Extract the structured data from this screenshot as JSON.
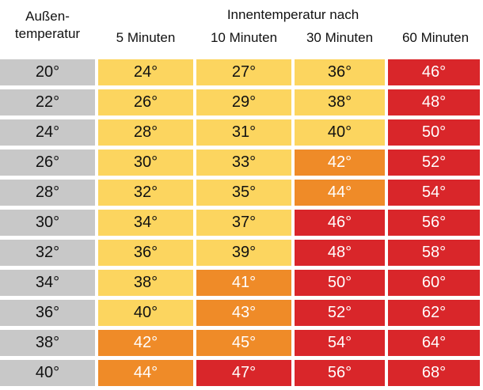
{
  "header": {
    "outside_line1": "Außen-",
    "outside_line2": "temperatur",
    "group": "Innentemperatur nach",
    "columns": [
      "5 Minuten",
      "10 Minuten",
      "30 Minuten",
      "60 Minuten"
    ]
  },
  "colors": {
    "gray": "#c8c8c8",
    "yellow": "#fcd55f",
    "orange": "#ef8b28",
    "red": "#d9262a"
  },
  "rows": [
    {
      "cells": [
        {
          "v": "20°",
          "c": "gray"
        },
        {
          "v": "24°",
          "c": "yellow"
        },
        {
          "v": "27°",
          "c": "yellow"
        },
        {
          "v": "36°",
          "c": "yellow"
        },
        {
          "v": "46°",
          "c": "red"
        }
      ]
    },
    {
      "cells": [
        {
          "v": "22°",
          "c": "gray"
        },
        {
          "v": "26°",
          "c": "yellow"
        },
        {
          "v": "29°",
          "c": "yellow"
        },
        {
          "v": "38°",
          "c": "yellow"
        },
        {
          "v": "48°",
          "c": "red"
        }
      ]
    },
    {
      "cells": [
        {
          "v": "24°",
          "c": "gray"
        },
        {
          "v": "28°",
          "c": "yellow"
        },
        {
          "v": "31°",
          "c": "yellow"
        },
        {
          "v": "40°",
          "c": "yellow"
        },
        {
          "v": "50°",
          "c": "red"
        }
      ]
    },
    {
      "cells": [
        {
          "v": "26°",
          "c": "gray"
        },
        {
          "v": "30°",
          "c": "yellow"
        },
        {
          "v": "33°",
          "c": "yellow"
        },
        {
          "v": "42°",
          "c": "orange"
        },
        {
          "v": "52°",
          "c": "red"
        }
      ]
    },
    {
      "cells": [
        {
          "v": "28°",
          "c": "gray"
        },
        {
          "v": "32°",
          "c": "yellow"
        },
        {
          "v": "35°",
          "c": "yellow"
        },
        {
          "v": "44°",
          "c": "orange"
        },
        {
          "v": "54°",
          "c": "red"
        }
      ]
    },
    {
      "cells": [
        {
          "v": "30°",
          "c": "gray"
        },
        {
          "v": "34°",
          "c": "yellow"
        },
        {
          "v": "37°",
          "c": "yellow"
        },
        {
          "v": "46°",
          "c": "red"
        },
        {
          "v": "56°",
          "c": "red"
        }
      ]
    },
    {
      "cells": [
        {
          "v": "32°",
          "c": "gray"
        },
        {
          "v": "36°",
          "c": "yellow"
        },
        {
          "v": "39°",
          "c": "yellow"
        },
        {
          "v": "48°",
          "c": "red"
        },
        {
          "v": "58°",
          "c": "red"
        }
      ]
    },
    {
      "cells": [
        {
          "v": "34°",
          "c": "gray"
        },
        {
          "v": "38°",
          "c": "yellow"
        },
        {
          "v": "41°",
          "c": "orange"
        },
        {
          "v": "50°",
          "c": "red"
        },
        {
          "v": "60°",
          "c": "red"
        }
      ]
    },
    {
      "cells": [
        {
          "v": "36°",
          "c": "gray"
        },
        {
          "v": "40°",
          "c": "yellow"
        },
        {
          "v": "43°",
          "c": "orange"
        },
        {
          "v": "52°",
          "c": "red"
        },
        {
          "v": "62°",
          "c": "red"
        }
      ]
    },
    {
      "cells": [
        {
          "v": "38°",
          "c": "gray"
        },
        {
          "v": "42°",
          "c": "orange"
        },
        {
          "v": "45°",
          "c": "orange"
        },
        {
          "v": "54°",
          "c": "red"
        },
        {
          "v": "64°",
          "c": "red"
        }
      ]
    },
    {
      "cells": [
        {
          "v": "40°",
          "c": "gray"
        },
        {
          "v": "44°",
          "c": "orange"
        },
        {
          "v": "47°",
          "c": "red"
        },
        {
          "v": "56°",
          "c": "red"
        },
        {
          "v": "68°",
          "c": "red"
        }
      ]
    }
  ]
}
